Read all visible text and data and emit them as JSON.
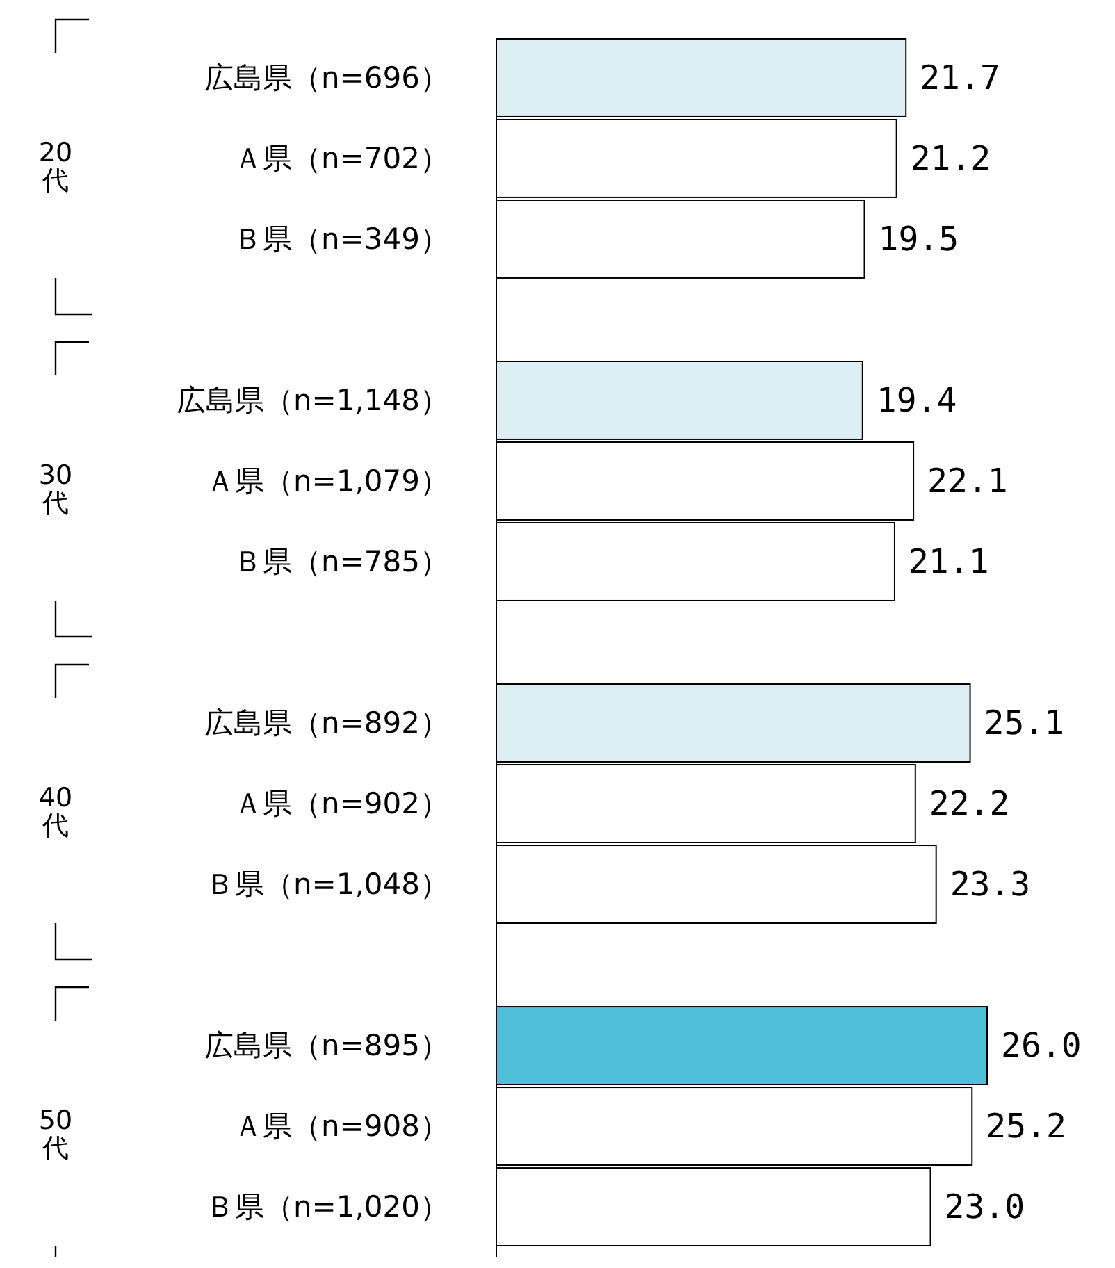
{
  "chart_data": {
    "type": "bar",
    "orientation": "horizontal",
    "categories": [
      "広島県（n=696）",
      "Ａ県（n=702）",
      "Ｂ県（n=349）",
      null,
      "広島県（n=1,148）",
      "Ａ県（n=1,079）",
      "Ｂ県（n=785）",
      null,
      "広島県（n=892）",
      "Ａ県（n=902）",
      "Ｂ県（n=1,048）",
      null,
      "広島県（n=895）",
      "Ａ県（n=908）",
      "Ｂ県（n=1,020）"
    ],
    "values": [
      21.7,
      21.2,
      19.5,
      null,
      19.4,
      22.1,
      21.1,
      null,
      25.1,
      22.2,
      23.3,
      null,
      26.0,
      25.2,
      23.0
    ],
    "value_labels": [
      "21.7",
      "21.2",
      "19.5",
      null,
      "19.4",
      "22.1",
      "21.1",
      null,
      "25.1",
      "22.2",
      "23.3",
      null,
      "26.0",
      "25.2",
      "23.0"
    ],
    "colors": [
      "#ddeef4",
      "#ffffff",
      "#ffffff",
      null,
      "#ddeef4",
      "#ffffff",
      "#ffffff",
      null,
      "#ddeef4",
      "#ffffff",
      "#ffffff",
      null,
      "#4fbfd9",
      "#ffffff",
      "#ffffff"
    ],
    "annotations": [
      "20代",
      "30代",
      "40代",
      "50代"
    ]
  }
}
